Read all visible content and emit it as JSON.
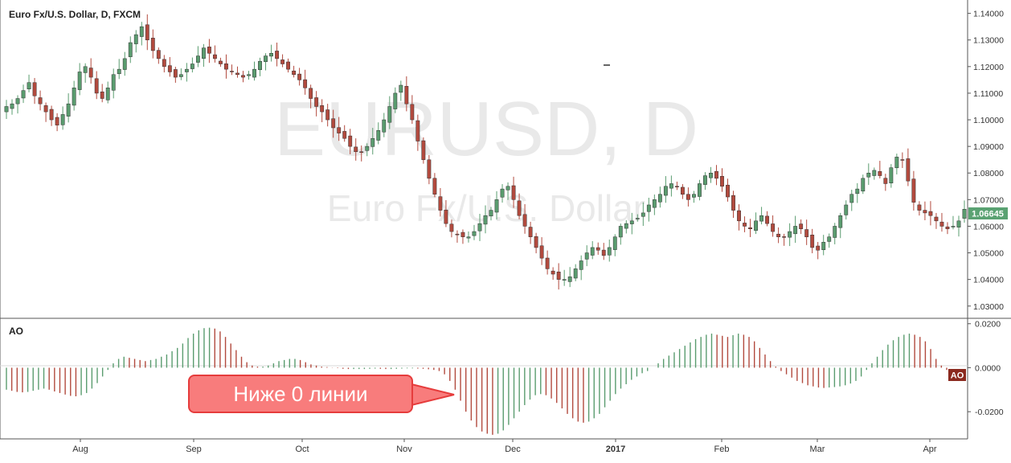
{
  "chart_data": [
    {
      "type": "candlestick",
      "title": "Euro Fx/U.S. Dollar, D, FXCM",
      "watermark_symbol": "EURUSD, D",
      "watermark_name": "Euro Fx/U.S. Dollar",
      "last_price": "1.06645",
      "ylim": [
        1.026,
        1.142
      ],
      "y_ticks": [
        "1.14000",
        "1.13000",
        "1.12000",
        "1.11000",
        "1.10000",
        "1.09000",
        "1.08000",
        "1.07000",
        "1.06000",
        "1.05000",
        "1.04000",
        "1.03000"
      ],
      "x_ticks": [
        "Aug",
        "Sep",
        "Oct",
        "Nov",
        "Dec",
        "2017",
        "Feb",
        "Mar",
        "Apr"
      ],
      "grid": false,
      "close_series": [
        1.105,
        1.106,
        1.108,
        1.111,
        1.114,
        1.109,
        1.106,
        1.103,
        1.1,
        1.098,
        1.102,
        1.106,
        1.112,
        1.118,
        1.12,
        1.116,
        1.11,
        1.108,
        1.112,
        1.117,
        1.119,
        1.123,
        1.129,
        1.132,
        1.135,
        1.13,
        1.126,
        1.123,
        1.12,
        1.118,
        1.116,
        1.117,
        1.119,
        1.121,
        1.124,
        1.127,
        1.125,
        1.123,
        1.121,
        1.119,
        1.118,
        1.117,
        1.116,
        1.117,
        1.119,
        1.122,
        1.124,
        1.125,
        1.123,
        1.121,
        1.119,
        1.117,
        1.115,
        1.112,
        1.108,
        1.105,
        1.103,
        1.1,
        1.097,
        1.095,
        1.093,
        1.09,
        1.088,
        1.088,
        1.09,
        1.093,
        1.096,
        1.1,
        1.105,
        1.11,
        1.113,
        1.106,
        1.1,
        1.092,
        1.085,
        1.078,
        1.072,
        1.066,
        1.061,
        1.058,
        1.057,
        1.056,
        1.056,
        1.058,
        1.061,
        1.064,
        1.066,
        1.07,
        1.074,
        1.075,
        1.07,
        1.064,
        1.06,
        1.056,
        1.052,
        1.048,
        1.044,
        1.042,
        1.04,
        1.04,
        1.041,
        1.044,
        1.047,
        1.05,
        1.052,
        1.051,
        1.049,
        1.052,
        1.056,
        1.06,
        1.061,
        1.062,
        1.063,
        1.065,
        1.068,
        1.07,
        1.072,
        1.075,
        1.076,
        1.075,
        1.072,
        1.07,
        1.072,
        1.076,
        1.079,
        1.08,
        1.078,
        1.075,
        1.071,
        1.066,
        1.062,
        1.06,
        1.059,
        1.062,
        1.064,
        1.061,
        1.058,
        1.056,
        1.056,
        1.058,
        1.06,
        1.059,
        1.056,
        1.052,
        1.051,
        1.054,
        1.056,
        1.06,
        1.064,
        1.068,
        1.072,
        1.074,
        1.078,
        1.08,
        1.081,
        1.079,
        1.076,
        1.082,
        1.086,
        1.085,
        1.077,
        1.069,
        1.066,
        1.065,
        1.064,
        1.062,
        1.06,
        1.059,
        1.06,
        1.062,
        1.0664
      ],
      "categories_note": "daily bars, Jul 2016 to Apr 2017"
    },
    {
      "type": "bar",
      "title": "AO",
      "label": "AO",
      "ylim": [
        -0.032,
        0.021
      ],
      "y_ticks": [
        "0.0200",
        "0.0000",
        "-0.0200"
      ],
      "values": [
        -0.01,
        -0.0105,
        -0.011,
        -0.0112,
        -0.011,
        -0.0105,
        -0.01,
        -0.0095,
        -0.01,
        -0.0108,
        -0.0115,
        -0.0122,
        -0.0128,
        -0.013,
        -0.0125,
        -0.0115,
        -0.0095,
        -0.007,
        -0.004,
        -0.001,
        0.002,
        0.004,
        0.005,
        0.0045,
        0.004,
        0.0035,
        0.003,
        0.0035,
        0.004,
        0.005,
        0.006,
        0.0075,
        0.009,
        0.011,
        0.0135,
        0.0155,
        0.017,
        0.018,
        0.0182,
        0.0178,
        0.0165,
        0.014,
        0.011,
        0.008,
        0.005,
        0.0025,
        0.001,
        0.0005,
        0.0005,
        0.001,
        0.002,
        0.003,
        0.0035,
        0.004,
        0.004,
        0.0035,
        0.0025,
        0.0015,
        0.001,
        0.0005,
        0.0003,
        0.0001,
        -0.0002,
        -0.0005,
        -0.0006,
        -0.0006,
        -0.0006,
        -0.0006,
        -0.0005,
        -0.0004,
        -0.0005,
        -0.0006,
        -0.0006,
        -0.0005,
        -0.0004,
        -0.0003,
        -0.0003,
        -0.0004,
        -0.0005,
        -0.0007,
        -0.001,
        -0.0015,
        -0.003,
        -0.006,
        -0.01,
        -0.015,
        -0.02,
        -0.024,
        -0.027,
        -0.029,
        -0.03,
        -0.0305,
        -0.03,
        -0.0285,
        -0.026,
        -0.023,
        -0.02,
        -0.017,
        -0.0145,
        -0.0125,
        -0.012,
        -0.0125,
        -0.014,
        -0.016,
        -0.0185,
        -0.021,
        -0.023,
        -0.0245,
        -0.025,
        -0.0245,
        -0.023,
        -0.021,
        -0.018,
        -0.015,
        -0.012,
        -0.0095,
        -0.0075,
        -0.0055,
        -0.004,
        -0.0025,
        -0.0015,
        0.0,
        0.002,
        0.004,
        0.0055,
        0.007,
        0.0085,
        0.01,
        0.0115,
        0.013,
        0.014,
        0.015,
        0.0155,
        0.015,
        0.0145,
        0.014,
        0.0148,
        0.0155,
        0.015,
        0.014,
        0.012,
        0.009,
        0.006,
        0.003,
        0.0005,
        -0.0015,
        -0.003,
        -0.0045,
        -0.006,
        -0.007,
        -0.008,
        -0.0085,
        -0.009,
        -0.0092,
        -0.009,
        -0.0088,
        -0.0085,
        -0.008,
        -0.0072,
        -0.006,
        -0.004,
        -0.001,
        0.002,
        0.005,
        0.008,
        0.0105,
        0.0125,
        0.014,
        0.015,
        0.0155,
        0.015,
        0.014,
        0.012,
        0.0085,
        0.004,
        0.001,
        -0.001
      ]
    }
  ],
  "annotation": {
    "callout_text": "Ниже 0 линии"
  },
  "colors": {
    "up": "#5a9c6f",
    "down": "#b24a3e",
    "price_tag_bg": "#5aa272",
    "ao_tag_bg": "#8b2a1f",
    "callout_bg": "#f87c7c",
    "callout_border": "#e63c3c"
  }
}
